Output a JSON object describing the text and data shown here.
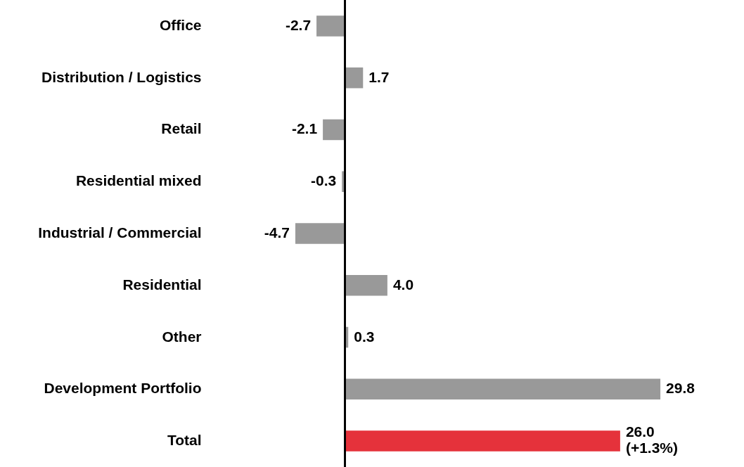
{
  "chart_data": {
    "type": "bar",
    "orientation": "horizontal",
    "categories": [
      "Office",
      "Distribution / Logistics",
      "Retail",
      "Residential mixed",
      "Industrial / Commercial",
      "Residential",
      "Other",
      "Development Portfolio",
      "Total"
    ],
    "values": [
      -2.7,
      1.7,
      -2.1,
      -0.3,
      -4.7,
      4.0,
      0.3,
      29.8,
      26.0
    ],
    "colors": [
      "#999999",
      "#999999",
      "#999999",
      "#999999",
      "#999999",
      "#999999",
      "#999999",
      "#999999",
      "#e5323b"
    ],
    "value_labels": [
      "-2.7",
      "1.7",
      "-2.1",
      "-0.3",
      "-4.7",
      "4.0",
      "0.3",
      "29.8",
      "26.0\n(+1.3%)"
    ]
  }
}
